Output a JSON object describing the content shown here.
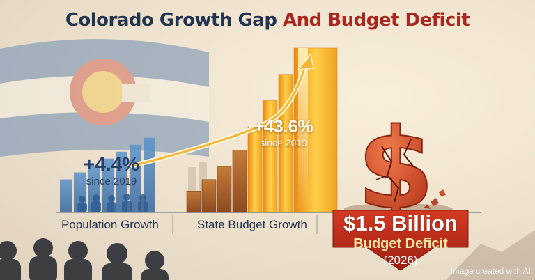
{
  "title": {
    "part1": "Colorado Growth Gap",
    "part2": "And Budget Deficit"
  },
  "colors": {
    "navy": "#22344f",
    "red": "#a8281f",
    "gold": "#f0a020",
    "blue": "#4a7fb8",
    "deficit": "#c8321f"
  },
  "icons": [
    "colorado-flag",
    "dollar-sign-icon",
    "upward-arrow-icon",
    "people-silhouette-icon"
  ],
  "chart_data": [
    {
      "type": "bar",
      "categories": [
        "Population Growth",
        "State Budget Growth"
      ],
      "values": [
        4.4,
        43.6
      ],
      "value_labels": [
        "+4.4%",
        "+43.6%"
      ],
      "sublabel": "since 2019",
      "unit": "%"
    }
  ],
  "population": {
    "value": "+4.4%",
    "since": "since 2019",
    "label": "Population Growth"
  },
  "budget": {
    "value": "+43.6%",
    "since": "since 2019",
    "label": "State Budget Growth"
  },
  "deficit": {
    "amount": "$1.5 Billion",
    "label": "Budget Deficit",
    "year": "(2026)"
  },
  "credit": "Image created with AI"
}
